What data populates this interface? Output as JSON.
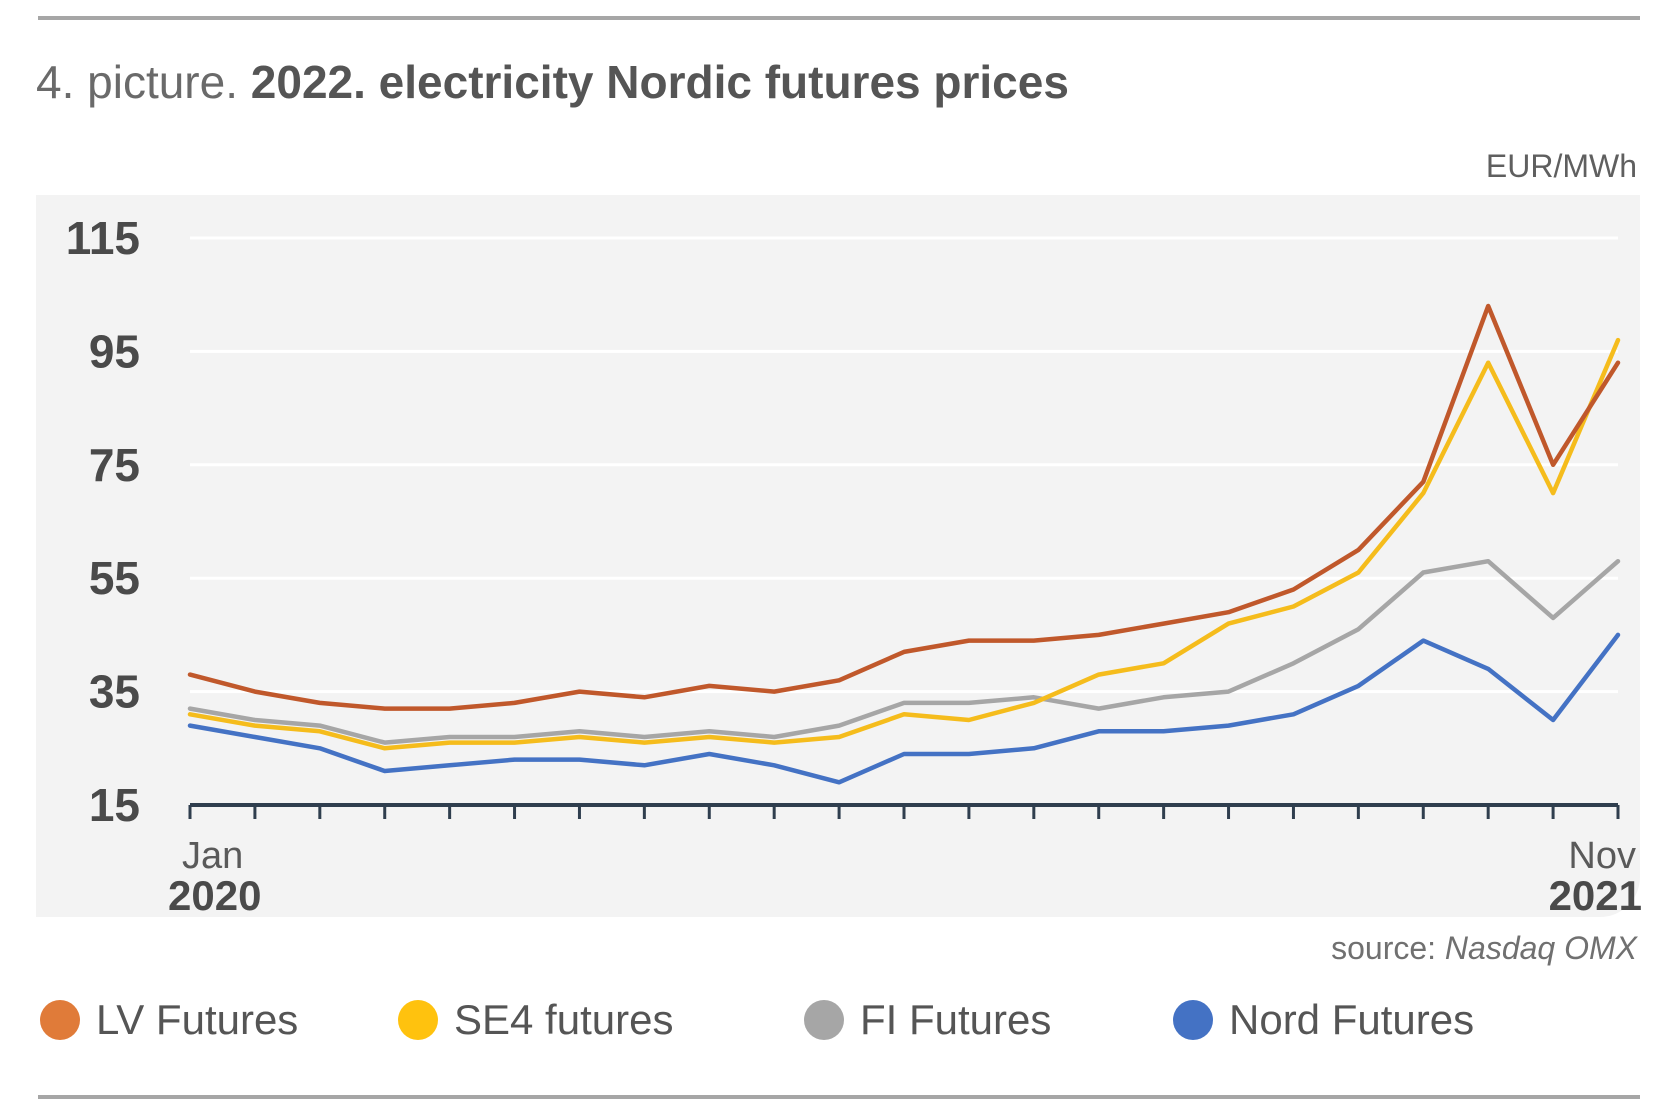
{
  "header": {
    "title_prefix": "4. picture.",
    "title_main": "2022. electricity Nordic futures prices",
    "unit": "EUR/MWh"
  },
  "footer": {
    "source_label": "source:",
    "source_name": "Nasdaq OMX"
  },
  "chart_data": {
    "type": "line",
    "title": "2022. electricity Nordic futures prices",
    "ylabel": "EUR/MWh",
    "ylim": [
      15,
      115
    ],
    "yticks": [
      15,
      35,
      55,
      75,
      95,
      115
    ],
    "xlim": [
      "2020-01-01",
      "2021-11-30"
    ],
    "x_tick_labels": [
      {
        "x": "2020-01",
        "month": "Jan",
        "year": "2020"
      },
      {
        "x": "2021-11",
        "month": "Nov",
        "year": "2021"
      }
    ],
    "grid": true,
    "legend": "bottom",
    "x": [
      "2020-01",
      "2020-02",
      "2020-03",
      "2020-04",
      "2020-05",
      "2020-06",
      "2020-07",
      "2020-08",
      "2020-09",
      "2020-10",
      "2020-11",
      "2020-12",
      "2021-01",
      "2021-02",
      "2021-03",
      "2021-04",
      "2021-05",
      "2021-06",
      "2021-07",
      "2021-08",
      "2021-09",
      "2021-10",
      "2021-11"
    ],
    "series": [
      {
        "name": "LV Futures",
        "color": "#c0582b",
        "values": [
          38,
          35,
          33,
          32,
          32,
          33,
          35,
          34,
          36,
          35,
          37,
          42,
          44,
          44,
          45,
          47,
          49,
          53,
          60,
          72,
          103,
          75,
          93
        ]
      },
      {
        "name": "SE4 futures",
        "color": "#f5bc1c",
        "values": [
          31,
          29,
          28,
          25,
          26,
          26,
          27,
          26,
          27,
          26,
          27,
          31,
          30,
          33,
          38,
          40,
          47,
          50,
          56,
          70,
          93,
          70,
          97
        ]
      },
      {
        "name": "FI Futures",
        "color": "#a6a6a6",
        "values": [
          32,
          30,
          29,
          26,
          27,
          27,
          28,
          27,
          28,
          27,
          29,
          33,
          33,
          34,
          32,
          34,
          35,
          40,
          46,
          56,
          58,
          48,
          58
        ]
      },
      {
        "name": "Nord Futures",
        "color": "#4472c4",
        "values": [
          29,
          27,
          25,
          21,
          22,
          23,
          23,
          22,
          24,
          22,
          19,
          24,
          24,
          25,
          28,
          28,
          29,
          31,
          36,
          44,
          39,
          30,
          45
        ]
      }
    ]
  }
}
